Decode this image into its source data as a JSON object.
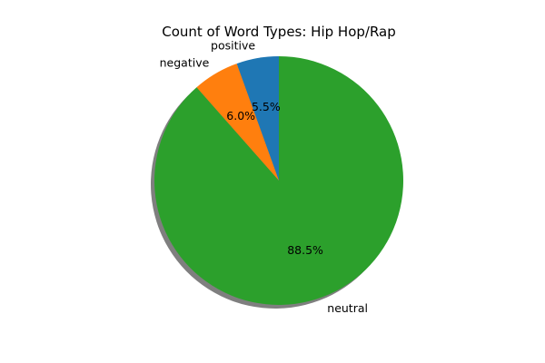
{
  "chart_data": {
    "type": "pie",
    "title": "Count of Word Types: Hip Hop/Rap",
    "start_angle_deg": 90,
    "direction": "counterclockwise",
    "shadow": true,
    "slices": [
      {
        "label": "positive",
        "value": 5.5,
        "pct_label": "5.5%",
        "color": "#1f77b4"
      },
      {
        "label": "negative",
        "value": 6.0,
        "pct_label": "6.0%",
        "color": "#ff7f0e"
      },
      {
        "label": "neutral",
        "value": 88.5,
        "pct_label": "88.5%",
        "color": "#2ca02c"
      }
    ]
  }
}
